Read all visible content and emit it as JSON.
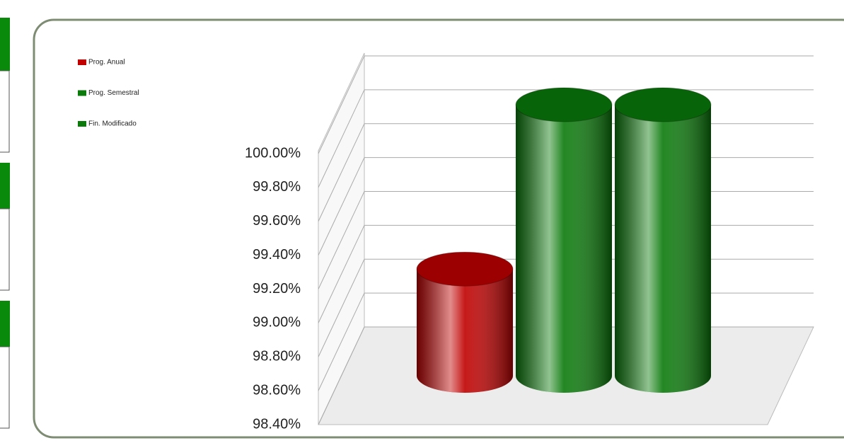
{
  "chart_data": {
    "type": "bar3d",
    "series": [
      {
        "name": "Prog. Anual",
        "color": "#c00000",
        "values": [
          99.03
        ]
      },
      {
        "name": "Prog. Semestral",
        "color": "#0a7a0a",
        "values": [
          100.0
        ]
      },
      {
        "name": "Fin. Modificado",
        "color": "#0a7a0a",
        "values": [
          100.0
        ]
      }
    ],
    "ylim": [
      98.4,
      100.0
    ],
    "yticks": [
      {
        "value": 98.4,
        "label": "98.40%"
      },
      {
        "value": 98.6,
        "label": "98.60%"
      },
      {
        "value": 98.8,
        "label": "98.80%"
      },
      {
        "value": 99.0,
        "label": "99.00%"
      },
      {
        "value": 99.2,
        "label": "99.20%"
      },
      {
        "value": 99.4,
        "label": "99.40%"
      },
      {
        "value": 99.6,
        "label": "99.60%"
      },
      {
        "value": 99.8,
        "label": "99.80%"
      },
      {
        "value": 100.0,
        "label": "100.00%"
      }
    ],
    "grid": true,
    "legend": "top-left"
  }
}
